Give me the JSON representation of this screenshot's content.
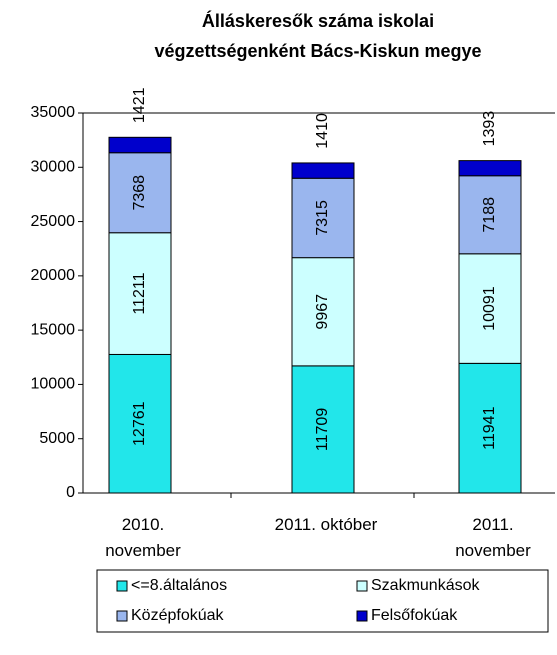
{
  "chart_data": {
    "type": "stacked_bar",
    "title": [
      "Álláskeresők száma iskolai",
      "végzettségenként Bács-Kiskun megye"
    ],
    "categories": [
      "2010. november",
      "2011. október",
      "2011. november"
    ],
    "series": [
      {
        "name": "<=8.általános",
        "color": "#22e6ea",
        "values": [
          12761,
          11709,
          11941
        ]
      },
      {
        "name": "Szakmunkások",
        "color": "#ccffff",
        "values": [
          11211,
          9967,
          10091
        ]
      },
      {
        "name": "Középfokúak",
        "color": "#9ab6ee",
        "values": [
          7368,
          7315,
          7188
        ]
      },
      {
        "name": "Felsőfokúak",
        "color": "#0000cc",
        "values": [
          1421,
          1410,
          1393
        ]
      }
    ],
    "ylim": [
      0,
      35000
    ],
    "yticks": [
      0,
      5000,
      10000,
      15000,
      20000,
      25000,
      30000,
      35000
    ],
    "grid": false
  }
}
